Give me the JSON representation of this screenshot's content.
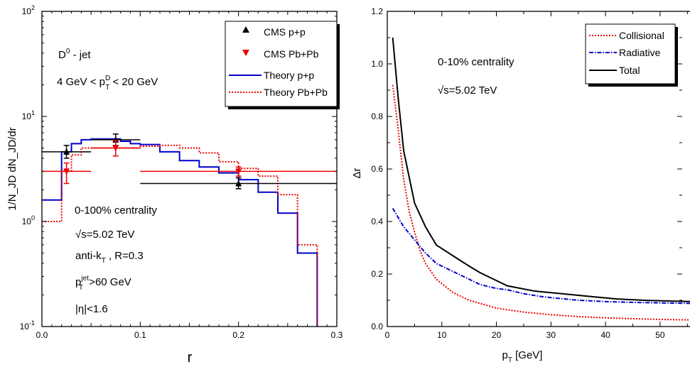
{
  "chart_data": [
    {
      "type": "step-line-with-errorbars",
      "xlabel": "r",
      "ylabel": "1/N_JD dN_JD/dr",
      "xlim": [
        0,
        0.3
      ],
      "ylim": [
        0.1,
        100
      ],
      "yscale": "log",
      "x_ticks": [
        "0.0",
        "0.1",
        "0.2",
        "0.3"
      ],
      "y_ticks": [
        {
          "base": "10",
          "exp": "-1",
          "v": 0.1
        },
        {
          "base": "10",
          "exp": "0",
          "v": 1
        },
        {
          "base": "10",
          "exp": "1",
          "v": 10
        },
        {
          "base": "10",
          "exp": "2",
          "v": 100
        }
      ],
      "annotations": {
        "title": "D",
        "title_sup": "0",
        "title_rest": " - jet",
        "pt_range_a": "4 GeV < p",
        "pt_range_sup": "D",
        "pt_range_sub": "T",
        "pt_range_b": " < 20 GeV",
        "centrality": "0-100% centrality",
        "sqrt_s": "s=5.02 TeV",
        "sqrt_symbol": "√",
        "algo_a": "anti-k",
        "algo_sub": "T",
        "algo_b": " , R=0.3",
        "ptjet_a": "p",
        "ptjet_sup": "jet",
        "ptjet_sub": "T",
        "ptjet_b": " >60 GeV",
        "eta": "|η|<1.6"
      },
      "legend": {
        "position": "top-right",
        "entries": [
          "CMS p+p",
          "CMS Pb+Pb",
          "Theory p+p",
          "Theory Pb+Pb"
        ]
      },
      "series": [
        {
          "name": "Theory p+p",
          "color": "#0000cc",
          "style": "solid",
          "edges": [
            0,
            0.02,
            0.03,
            0.04,
            0.05,
            0.06,
            0.07,
            0.08,
            0.09,
            0.1,
            0.12,
            0.14,
            0.16,
            0.18,
            0.2,
            0.22,
            0.24,
            0.26,
            0.28
          ],
          "values": [
            1.6,
            4.6,
            5.5,
            6.0,
            6.1,
            6.1,
            6.1,
            5.8,
            5.5,
            5.4,
            4.6,
            3.8,
            3.3,
            2.9,
            2.5,
            1.9,
            1.2,
            0.5
          ]
        },
        {
          "name": "Theory Pb+Pb",
          "color": "#ee0000",
          "style": "dotted",
          "edges": [
            0,
            0.02,
            0.03,
            0.04,
            0.05,
            0.06,
            0.07,
            0.08,
            0.09,
            0.1,
            0.12,
            0.14,
            0.16,
            0.18,
            0.2,
            0.22,
            0.24,
            0.26,
            0.28
          ],
          "values": [
            1.0,
            3.0,
            4.3,
            5.0,
            5.0,
            5.0,
            5.0,
            5.0,
            5.0,
            5.2,
            5.3,
            5.0,
            4.5,
            3.7,
            3.2,
            2.7,
            1.8,
            0.6
          ]
        },
        {
          "name": "CMS p+p",
          "color": "#000000",
          "marker": "triangle-up",
          "points": [
            {
              "x": 0.025,
              "y": 4.6,
              "xlo": 0.0,
              "xhi": 0.05,
              "ylo": 4.0,
              "yhi": 5.3
            },
            {
              "x": 0.075,
              "y": 6.0,
              "xlo": 0.05,
              "xhi": 0.1,
              "ylo": 5.3,
              "yhi": 6.8
            },
            {
              "x": 0.2,
              "y": 2.3,
              "xlo": 0.1,
              "xhi": 0.3,
              "ylo": 2.05,
              "yhi": 2.6
            }
          ]
        },
        {
          "name": "CMS Pb+Pb",
          "color": "#ee0000",
          "marker": "triangle-down",
          "points": [
            {
              "x": 0.025,
              "y": 3.0,
              "xlo": 0.0,
              "xhi": 0.05,
              "ylo": 2.3,
              "yhi": 3.6
            },
            {
              "x": 0.075,
              "y": 5.0,
              "xlo": 0.05,
              "xhi": 0.1,
              "ylo": 4.2,
              "yhi": 5.9
            },
            {
              "x": 0.2,
              "y": 3.0,
              "xlo": 0.1,
              "xhi": 0.3,
              "ylo": 2.7,
              "yhi": 3.3
            }
          ]
        }
      ]
    },
    {
      "type": "line",
      "xlabel": "p",
      "xlabel_sub": "T",
      "xlabel_rest": " [GeV]",
      "ylabel": "Δr",
      "xlim": [
        0,
        56
      ],
      "ylim": [
        0,
        1.2
      ],
      "x_ticks": [
        0,
        10,
        20,
        30,
        40,
        50
      ],
      "y_ticks": [
        "0.0",
        "0.2",
        "0.4",
        "0.6",
        "0.8",
        "1.0",
        "1.2"
      ],
      "annotations": {
        "centrality": "0-10% centrality",
        "sqrt_s": "s=5.02 TeV",
        "sqrt_symbol": "√"
      },
      "legend": {
        "position": "top-right",
        "entries": [
          "Collisional",
          "Radiative",
          "Total"
        ]
      },
      "series": [
        {
          "name": "Collisional",
          "color": "#ee0000",
          "style": "dotted",
          "x": [
            1,
            2,
            3,
            4,
            5,
            6,
            7,
            9,
            12,
            15,
            20,
            25,
            30,
            35,
            40,
            45,
            50,
            56
          ],
          "y": [
            0.92,
            0.75,
            0.56,
            0.44,
            0.36,
            0.29,
            0.24,
            0.18,
            0.13,
            0.1,
            0.07,
            0.055,
            0.045,
            0.038,
            0.033,
            0.03,
            0.027,
            0.025
          ]
        },
        {
          "name": "Radiative",
          "color": "#0000cc",
          "style": "dash-dot",
          "x": [
            1,
            3,
            5,
            7,
            9,
            12,
            15,
            17,
            20,
            22,
            25,
            28,
            30,
            35,
            40,
            45,
            50,
            56
          ],
          "y": [
            0.45,
            0.38,
            0.33,
            0.28,
            0.24,
            0.21,
            0.18,
            0.16,
            0.145,
            0.14,
            0.125,
            0.115,
            0.11,
            0.1,
            0.095,
            0.092,
            0.09,
            0.088
          ]
        },
        {
          "name": "Total",
          "color": "#000000",
          "style": "solid",
          "x": [
            1,
            2,
            3,
            5,
            7,
            9,
            12,
            15,
            17,
            20,
            22,
            27,
            32,
            37,
            42,
            47,
            52,
            56
          ],
          "y": [
            1.1,
            0.87,
            0.67,
            0.47,
            0.38,
            0.31,
            0.27,
            0.23,
            0.205,
            0.175,
            0.155,
            0.135,
            0.125,
            0.115,
            0.105,
            0.1,
            0.097,
            0.095
          ]
        }
      ]
    }
  ]
}
